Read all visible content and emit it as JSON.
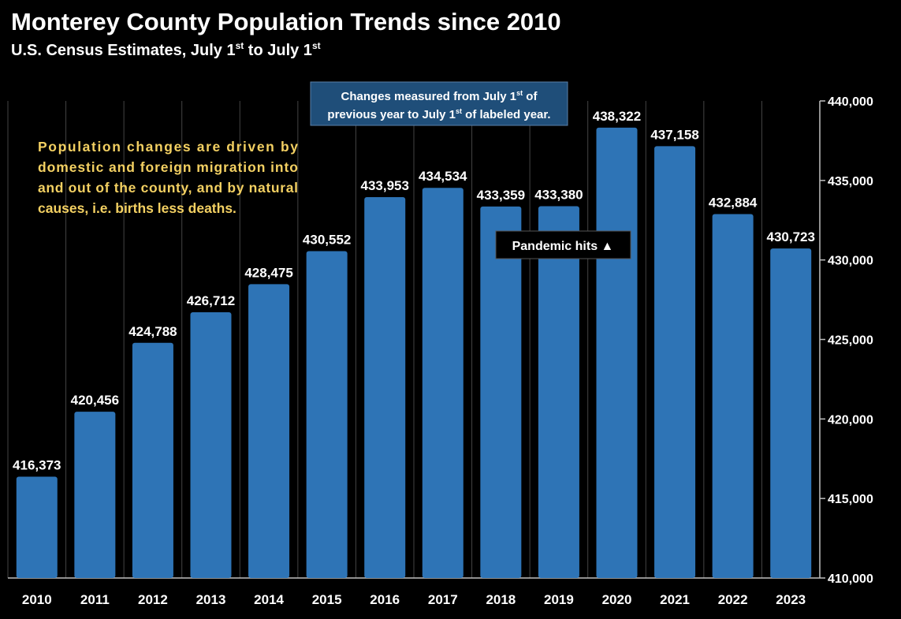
{
  "chart_data": {
    "type": "bar",
    "title": "Monterey County Population Trends since 2010",
    "subtitle": {
      "text_1": "U.S. Census Estimates, July 1",
      "sup_1": "st",
      "text_2": " to July 1",
      "sup_2": "st"
    },
    "categories": [
      "2010",
      "2011",
      "2012",
      "2013",
      "2014",
      "2015",
      "2016",
      "2017",
      "2018",
      "2019",
      "2020",
      "2021",
      "2022",
      "2023"
    ],
    "values": [
      416373,
      420456,
      424788,
      426712,
      428475,
      430552,
      433953,
      434534,
      433359,
      433380,
      438322,
      437158,
      432884,
      430723
    ],
    "data_labels": [
      "416,373",
      "420,456",
      "424,788",
      "426,712",
      "428,475",
      "430,552",
      "433,953",
      "434,534",
      "433,359",
      "433,380",
      "438,322",
      "437,158",
      "432,884",
      "430,723"
    ],
    "ylim": [
      410000,
      440000
    ],
    "y_ticks": [
      410000,
      415000,
      420000,
      425000,
      430000,
      435000,
      440000
    ],
    "y_tick_labels": [
      "410,000",
      "415,000",
      "420,000",
      "425,000",
      "430,000",
      "435,000",
      "440,000"
    ],
    "y_axis_position": "right",
    "xlabel": "",
    "ylabel": "",
    "grid": true,
    "colors": {
      "bar": "#2e74b6",
      "background": "#000000",
      "text": "#ffffff",
      "note_bg": "#1f4e79",
      "highlight_text": "#f3d062",
      "grid": "#444444"
    },
    "annotations": {
      "note": {
        "line1_a": "Changes measured from July 1",
        "line1_sup": "st",
        "line1_b": " of",
        "line2_a": "previous year to July 1",
        "line2_sup": "st",
        "line2_b": " of labeled year."
      },
      "pandemic": "Pandemic hits ▲",
      "explanation": [
        "Population changes are driven by",
        "domestic and foreign migration into",
        "and out of the county, and by natural",
        "causes, i.e. births less deaths."
      ]
    }
  }
}
